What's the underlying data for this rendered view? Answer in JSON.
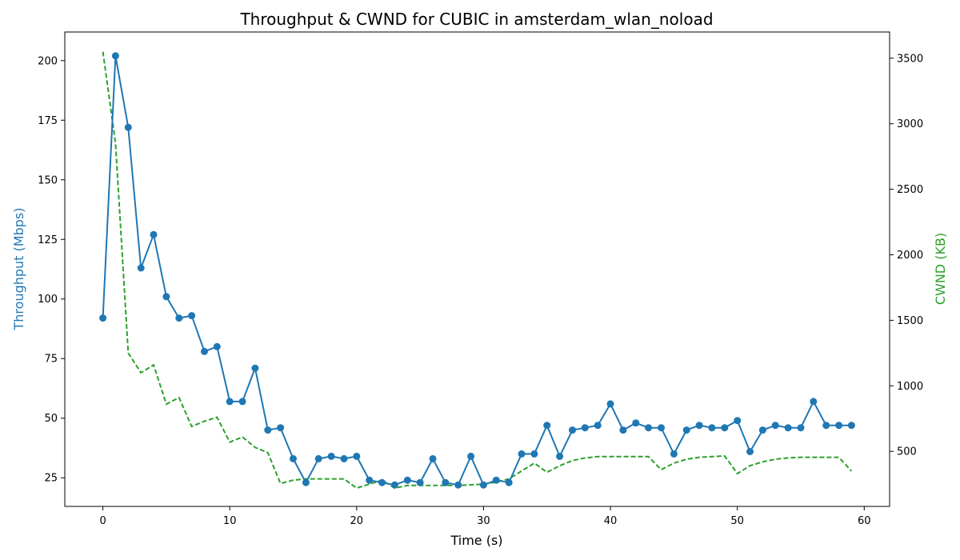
{
  "chart_data": {
    "type": "line",
    "title": "Throughput & CWND for CUBIC in amsterdam_wlan_noload",
    "xlabel": "Time (s)",
    "ylabel_left": "Throughput (Mbps)",
    "ylabel_right": "CWND (KB)",
    "xlim": [
      -3,
      62
    ],
    "ylim_left": [
      13,
      212
    ],
    "ylim_right": [
      80,
      3700
    ],
    "x_ticks": [
      0,
      10,
      20,
      30,
      40,
      50,
      60
    ],
    "y_left_ticks": [
      25,
      50,
      75,
      100,
      125,
      150,
      175,
      200
    ],
    "y_right_ticks": [
      500,
      1000,
      1500,
      2000,
      2500,
      3000,
      3500
    ],
    "grid": false,
    "colors": {
      "throughput": "#1f77b4",
      "cwnd": "#2ca02c"
    },
    "x": [
      0,
      1,
      2,
      3,
      4,
      5,
      6,
      7,
      8,
      9,
      10,
      11,
      12,
      13,
      14,
      15,
      16,
      17,
      18,
      19,
      20,
      21,
      22,
      23,
      24,
      25,
      26,
      27,
      28,
      29,
      30,
      31,
      32,
      33,
      34,
      35,
      36,
      37,
      38,
      39,
      40,
      41,
      42,
      43,
      44,
      45,
      46,
      47,
      48,
      49,
      50,
      51,
      52,
      53,
      54,
      55,
      56,
      57,
      58,
      59
    ],
    "series": [
      {
        "axis": "left",
        "style": "solid-marker",
        "values": [
          92,
          202,
          172,
          113,
          127,
          101,
          92,
          93,
          78,
          80,
          57,
          57,
          71,
          45,
          46,
          33,
          23,
          33,
          34,
          33,
          34,
          24,
          23,
          22,
          24,
          23,
          33,
          23,
          22,
          34,
          22,
          24,
          23,
          35,
          35,
          47,
          34,
          45,
          46,
          47,
          56,
          45,
          48,
          46,
          46,
          35,
          45,
          47,
          46,
          46,
          49,
          36,
          45,
          47,
          46,
          46,
          57,
          47,
          47,
          47
        ]
      },
      {
        "axis": "right",
        "style": "dashed",
        "values": [
          3550,
          2850,
          1250,
          1100,
          1160,
          860,
          910,
          690,
          730,
          760,
          570,
          610,
          530,
          490,
          255,
          280,
          290,
          290,
          290,
          290,
          220,
          250,
          280,
          220,
          240,
          240,
          240,
          240,
          240,
          245,
          250,
          265,
          290,
          350,
          410,
          340,
          390,
          430,
          450,
          460,
          460,
          460,
          460,
          460,
          360,
          410,
          440,
          455,
          460,
          465,
          330,
          390,
          420,
          440,
          450,
          455,
          455,
          455,
          455,
          350
        ]
      }
    ]
  }
}
